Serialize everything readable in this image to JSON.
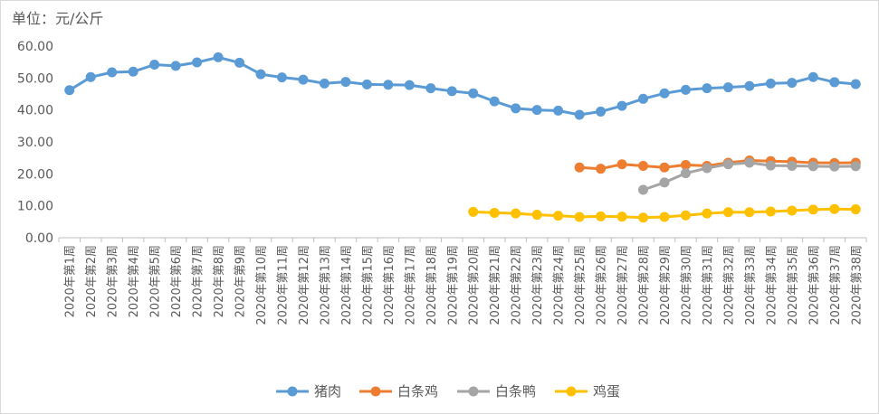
{
  "unit_label": "单位：元/公斤",
  "chart_data": {
    "type": "line",
    "title": "",
    "xlabel": "",
    "ylabel": "",
    "ylim": [
      0,
      60
    ],
    "y_ticks": [
      "0.00",
      "10.00",
      "20.00",
      "30.00",
      "40.00",
      "50.00",
      "60.00"
    ],
    "grid": false,
    "legend_position": "bottom",
    "categories": [
      "2020年第1周",
      "2020年第2周",
      "2020年第3周",
      "2020年第4周",
      "2020年第5周",
      "2020年第6周",
      "2020年第7周",
      "2020年第8周",
      "2020年第9周",
      "2020年第10周",
      "2020年第11周",
      "2020年第12周",
      "2020年第13周",
      "2020年第14周",
      "2020年第15周",
      "2020年第16周",
      "2020年第17周",
      "2020年第18周",
      "2020年第19周",
      "2020年第20周",
      "2020年第21周",
      "2020年第22周",
      "2020年第23周",
      "2020年第24周",
      "2020年第25周",
      "2020年第26周",
      "2020年第27周",
      "2020年第28周",
      "2020年第29周",
      "2020年第30周",
      "2020年第31周",
      "2020年第32周",
      "2020年第33周",
      "2020年第34周",
      "2020年第35周",
      "2020年第36周",
      "2020年第37周",
      "2020年第38周"
    ],
    "series": [
      {
        "name": "猪肉",
        "color": "#5b9bd5",
        "values": [
          46.2,
          50.3,
          51.8,
          52.0,
          54.2,
          53.8,
          54.9,
          56.5,
          54.8,
          51.2,
          50.2,
          49.5,
          48.3,
          48.8,
          48.0,
          47.9,
          47.8,
          46.8,
          45.9,
          45.2,
          42.7,
          40.5,
          40.0,
          39.8,
          38.5,
          39.5,
          41.3,
          43.5,
          45.2,
          46.3,
          46.8,
          47.1,
          47.5,
          48.3,
          48.5,
          50.3,
          48.7,
          48.1
        ]
      },
      {
        "name": "白条鸡",
        "color": "#ed7d31",
        "values": [
          null,
          null,
          null,
          null,
          null,
          null,
          null,
          null,
          null,
          null,
          null,
          null,
          null,
          null,
          null,
          null,
          null,
          null,
          null,
          null,
          null,
          null,
          null,
          null,
          22.0,
          21.6,
          23.0,
          22.5,
          22.0,
          22.8,
          22.5,
          23.5,
          24.2,
          24.0,
          23.8,
          23.5,
          23.4,
          23.5
        ]
      },
      {
        "name": "白条鸭",
        "color": "#a5a5a5",
        "values": [
          null,
          null,
          null,
          null,
          null,
          null,
          null,
          null,
          null,
          null,
          null,
          null,
          null,
          null,
          null,
          null,
          null,
          null,
          null,
          null,
          null,
          null,
          null,
          null,
          null,
          null,
          null,
          15.0,
          17.3,
          20.2,
          21.8,
          23.0,
          23.5,
          22.6,
          22.5,
          22.4,
          22.3,
          22.4
        ]
      },
      {
        "name": "鸡蛋",
        "color": "#ffc000",
        "values": [
          null,
          null,
          null,
          null,
          null,
          null,
          null,
          null,
          null,
          null,
          null,
          null,
          null,
          null,
          null,
          null,
          null,
          null,
          null,
          8.1,
          7.8,
          7.6,
          7.2,
          6.9,
          6.5,
          6.7,
          6.6,
          6.3,
          6.5,
          7.0,
          7.6,
          8.0,
          8.0,
          8.2,
          8.5,
          8.8,
          9.0,
          8.9
        ]
      }
    ]
  }
}
